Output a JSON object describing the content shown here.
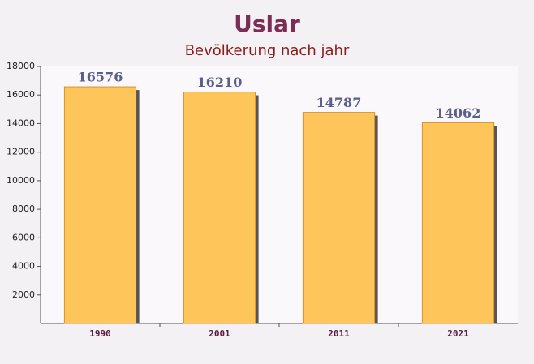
{
  "chart_data": {
    "type": "bar",
    "title": "Uslar",
    "subtitle": "Bevölkerung nach jahr",
    "categories": [
      "1990",
      "2001",
      "2011",
      "2021"
    ],
    "values": [
      16576,
      16210,
      14787,
      14062
    ],
    "color": "#fdc55a",
    "ylim": [
      0,
      18000
    ],
    "yticks": [
      2000,
      4000,
      6000,
      8000,
      10000,
      12000,
      14000,
      16000,
      18000
    ],
    "grid": false
  }
}
